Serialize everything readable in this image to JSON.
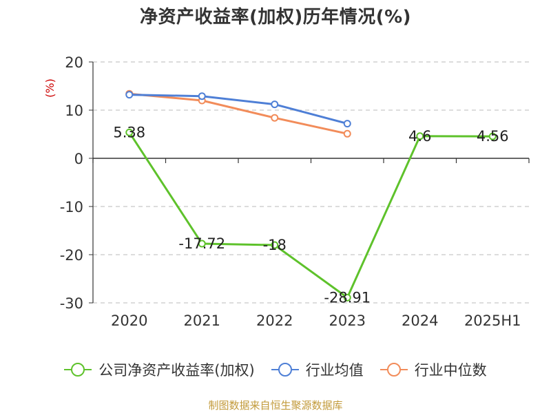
{
  "chart_data": {
    "type": "line",
    "title": "净资产收益率(加权)历年情况(%)",
    "ylabel": "(%)",
    "xlabel": "",
    "categories": [
      "2020",
      "2021",
      "2022",
      "2023",
      "2024",
      "2025H1"
    ],
    "ylim": [
      -30,
      20
    ],
    "yticks": [
      20,
      10,
      0,
      -10,
      -20,
      -30
    ],
    "grid": true,
    "legend_position": "bottom",
    "series": [
      {
        "name": "公司净资产收益率(加权)",
        "color": "#5ec22b",
        "values": [
          5.38,
          -17.72,
          -18,
          -28.91,
          4.6,
          4.56
        ],
        "labels": [
          "5.38",
          "-17.72",
          "-18",
          "-28.91",
          "4.6",
          "4.56"
        ]
      },
      {
        "name": "行业均值",
        "color": "#4e7fd6",
        "values": [
          13.2,
          12.9,
          11.2,
          7.2,
          null,
          null
        ]
      },
      {
        "name": "行业中位数",
        "color": "#f28c5a",
        "values": [
          13.4,
          12.0,
          8.4,
          5.1,
          null,
          null
        ]
      }
    ]
  },
  "source": "制图数据来自恒生聚源数据库"
}
